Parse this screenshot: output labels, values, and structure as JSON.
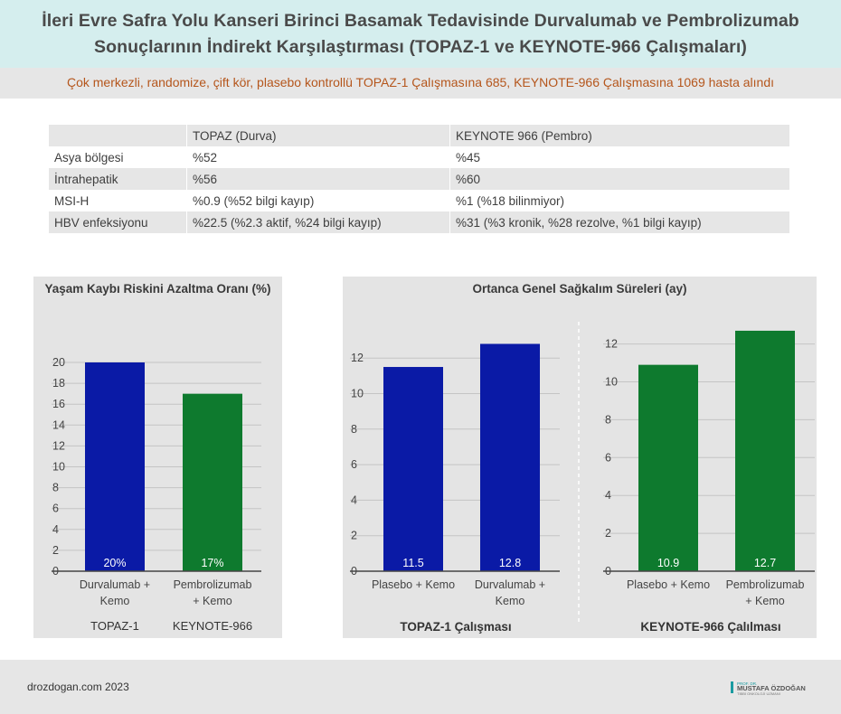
{
  "header": {
    "title_line1": "İleri Evre Safra Yolu Kanseri Birinci Basamak Tedavisinde Durvalumab ve Pembrolizumab",
    "title_line2": "Sonuçlarının İndirekt Karşılaştırması (TOPAZ-1 ve KEYNOTE-966 Çalışmaları)",
    "subtitle": "Çok merkezli, randomize, çift kör, plasebo kontrollü TOPAZ-1 Çalışmasına 685, KEYNOTE-966 Çalışmasına 1069 hasta alındı"
  },
  "table": {
    "headers": [
      "",
      "TOPAZ (Durva)",
      "KEYNOTE 966 (Pembro)"
    ],
    "rows": [
      [
        "Asya bölgesi",
        "%52",
        "%45"
      ],
      [
        "İntrahepatik",
        "%56",
        "%60"
      ],
      [
        "MSI-H",
        "%0.9 (%52 bilgi kayıp)",
        "%1 (%18 bilinmiyor)"
      ],
      [
        "HBV enfeksiyonu",
        "%22.5 (%2.3 aktif, %24 bilgi kayıp)",
        "%31 (%3 kronik, %28 rezolve, %1 bilgi kayıp)"
      ]
    ]
  },
  "left_panel": {
    "title": "Yaşam Kaybı Riskini Azaltma Oranı (%)"
  },
  "right_panel": {
    "title": "Ortanca Genel Sağkalım Süreleri (ay)"
  },
  "chart_data": [
    {
      "type": "bar",
      "title": "Yaşam Kaybı Riskini Azaltma Oranı (%)",
      "categories": [
        "Durvalumab + Kemo",
        "Pembrolizumab + Kemo"
      ],
      "category_lines": [
        [
          "Durvalumab +",
          "Kemo"
        ],
        [
          "Pembrolizumab",
          "+ Kemo"
        ]
      ],
      "group_labels": [
        "TOPAZ-1",
        "KEYNOTE-966"
      ],
      "values": [
        20,
        17
      ],
      "data_labels": [
        "20%",
        "17%"
      ],
      "colors": [
        "#0a1aa6",
        "#0e7a2e"
      ],
      "ylim": [
        0,
        20
      ],
      "yticks": [
        0,
        2,
        4,
        6,
        8,
        10,
        12,
        14,
        16,
        18,
        20
      ],
      "grid": true
    },
    {
      "type": "bar",
      "subtitle": "TOPAZ-1 Çalışması",
      "categories": [
        "Plasebo + Kemo",
        "Durvalumab + Kemo"
      ],
      "category_lines": [
        [
          "Plasebo + Kemo"
        ],
        [
          "Durvalumab +",
          "Kemo"
        ]
      ],
      "values": [
        11.5,
        12.8
      ],
      "data_labels": [
        "11.5",
        "12.8"
      ],
      "color": "#0a1aa6",
      "ylim": [
        0,
        13
      ],
      "yticks": [
        0,
        2,
        4,
        6,
        8,
        10,
        12
      ],
      "grid": true
    },
    {
      "type": "bar",
      "subtitle": "KEYNOTE-966 Çalılması",
      "categories": [
        "Plasebo + Kemo",
        "Pembrolizumab + Kemo"
      ],
      "category_lines": [
        [
          "Plasebo + Kemo"
        ],
        [
          "Pembrolizumab",
          "+ Kemo"
        ]
      ],
      "values": [
        10.9,
        12.7
      ],
      "data_labels": [
        "10.9",
        "12.7"
      ],
      "color": "#0e7a2e",
      "ylim": [
        0,
        12.7
      ],
      "yticks": [
        0,
        2,
        4,
        6,
        8,
        10,
        12
      ],
      "grid": true
    }
  ],
  "footer": {
    "site": "drozdogan.com 2023",
    "logo_small_top": "PROF. DR.",
    "logo_name": "MUSTAFA ÖZDOĞAN",
    "logo_small_bottom": "TIBBİ ONKOLOJİ UZMANI"
  }
}
